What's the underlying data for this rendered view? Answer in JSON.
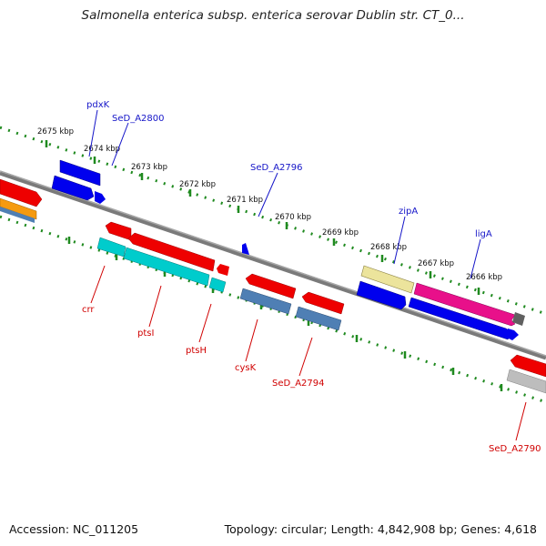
{
  "title": "Salmonella enterica subsp. enterica serovar Dublin str. CT_0...",
  "footer": {
    "accession": "Accession: NC_011205",
    "topology": "Topology: circular; Length: 4,842,908 bp; Genes: 4,618"
  },
  "colors": {
    "backbone": "#7a7a7a",
    "tick": "#1f8a1f",
    "forward_label": "#1515c8",
    "reverse_label": "#d00000",
    "gene_red": "#ee0000",
    "gene_blue": "#0000ee",
    "gene_cyan": "#00cccc",
    "gene_steelblue": "#4f7fb4",
    "gene_pink": "#e8108a",
    "gene_khaki": "#ece49c",
    "gene_orange": "#f59a10",
    "gene_gray": "#bdbdbd",
    "gene_darkgray": "#606060"
  },
  "scale_labels": [
    "2675 kbp",
    "2674 kbp",
    "2673 kbp",
    "2672 kbp",
    "2671 kbp",
    "2670 kbp",
    "2669 kbp",
    "2668 kbp",
    "2667 kbp",
    "2666 kbp"
  ],
  "forward_gene_labels": [
    "pdxK",
    "SeD_A2800",
    "SeD_A2796",
    "zipA",
    "ligA"
  ],
  "reverse_gene_labels": [
    "crr",
    "ptsI",
    "ptsH",
    "cysK",
    "SeD_A2794",
    "SeD_A2790"
  ]
}
